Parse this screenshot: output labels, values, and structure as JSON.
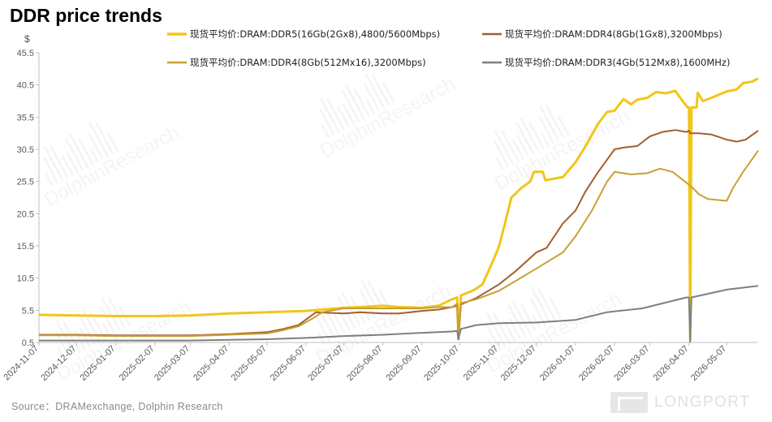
{
  "title": "DDR price trends",
  "source": "Source：DRAMexchange,  Dolphin  Research",
  "brand": "LONGPORT",
  "watermark": "DolphinResearch",
  "chart_data": {
    "type": "line",
    "ylabel": "$",
    "ylim": [
      0.5,
      45.5
    ],
    "yticks": [
      0.5,
      5.5,
      10.5,
      15.5,
      20.5,
      25.5,
      30.5,
      35.5,
      40.5,
      45.5
    ],
    "xlabels": [
      "2024-11-07",
      "2024-12-07",
      "2025-01-07",
      "2025-02-07",
      "2025-03-07",
      "2025-04-07",
      "2025-05-07",
      "2025-06-07",
      "2025-07-07",
      "2025-08-07",
      "2025-09-07",
      "2025-10-07",
      "2025-11-07",
      "2025-12-07",
      "2026-01-07",
      "2026-02-07",
      "2026-03-07",
      "2026-04-07",
      "2026-05-07"
    ],
    "legend_position": "top",
    "series": [
      {
        "name": "现货平均价:DRAM:DDR5(16Gb(2Gx8),4800/5600Mbps)",
        "color": "#f2c519",
        "width": 3,
        "points": [
          [
            "2024-11-07",
            4.8
          ],
          [
            "2024-12-07",
            4.7
          ],
          [
            "2025-01-07",
            4.6
          ],
          [
            "2025-02-07",
            4.6
          ],
          [
            "2025-03-07",
            4.7
          ],
          [
            "2025-04-07",
            5.0
          ],
          [
            "2025-05-07",
            5.2
          ],
          [
            "2025-06-07",
            5.4
          ],
          [
            "2025-06-20",
            5.6
          ],
          [
            "2025-07-07",
            5.9
          ],
          [
            "2025-07-20",
            6.0
          ],
          [
            "2025-08-07",
            6.2
          ],
          [
            "2025-08-20",
            6.0
          ],
          [
            "2025-09-07",
            5.9
          ],
          [
            "2025-09-20",
            6.2
          ],
          [
            "2025-10-01",
            7.2
          ],
          [
            "2025-10-05",
            7.5
          ],
          [
            "2025-10-06",
            1.0
          ],
          [
            "2025-10-08",
            7.8
          ],
          [
            "2025-10-18",
            8.6
          ],
          [
            "2025-10-25",
            9.5
          ],
          [
            "2025-11-01",
            12.5
          ],
          [
            "2025-11-07",
            15.3
          ],
          [
            "2025-11-12",
            19.0
          ],
          [
            "2025-11-17",
            23.0
          ],
          [
            "2025-11-25",
            24.5
          ],
          [
            "2025-12-02",
            25.5
          ],
          [
            "2025-12-05",
            27.0
          ],
          [
            "2025-12-12",
            27.0
          ],
          [
            "2025-12-14",
            25.7
          ],
          [
            "2025-12-28",
            26.2
          ],
          [
            "2026-01-07",
            28.5
          ],
          [
            "2026-01-15",
            31.0
          ],
          [
            "2026-01-25",
            34.5
          ],
          [
            "2026-02-01",
            36.3
          ],
          [
            "2026-02-07",
            36.5
          ],
          [
            "2026-02-14",
            38.3
          ],
          [
            "2026-02-20",
            37.5
          ],
          [
            "2026-02-25",
            38.2
          ],
          [
            "2026-03-05",
            38.5
          ],
          [
            "2026-03-12",
            39.4
          ],
          [
            "2026-03-20",
            39.2
          ],
          [
            "2026-03-27",
            39.6
          ],
          [
            "2026-04-02",
            38.0
          ],
          [
            "2026-04-06",
            37.0
          ],
          [
            "2026-04-07",
            37.0
          ],
          [
            "2026-04-08",
            1.0
          ],
          [
            "2026-04-09",
            37.0
          ],
          [
            "2026-04-13",
            37.0
          ],
          [
            "2026-04-14",
            39.3
          ],
          [
            "2026-04-18",
            38.0
          ],
          [
            "2026-04-25",
            38.5
          ],
          [
            "2026-05-07",
            39.5
          ],
          [
            "2026-05-15",
            39.8
          ],
          [
            "2026-05-20",
            40.8
          ],
          [
            "2026-05-27",
            41.0
          ],
          [
            "2026-06-01",
            41.5
          ]
        ]
      },
      {
        "name": "现货平均价:DRAM:DDR4(8Gb(1Gx8),3200Mbps)",
        "color": "#a45f2b",
        "width": 2,
        "points": [
          [
            "2024-11-07",
            1.7
          ],
          [
            "2024-12-07",
            1.7
          ],
          [
            "2025-01-07",
            1.6
          ],
          [
            "2025-02-07",
            1.6
          ],
          [
            "2025-03-07",
            1.6
          ],
          [
            "2025-04-07",
            1.8
          ],
          [
            "2025-05-07",
            2.1
          ],
          [
            "2025-05-20",
            2.6
          ],
          [
            "2025-06-01",
            3.2
          ],
          [
            "2025-06-10",
            4.5
          ],
          [
            "2025-06-15",
            5.2
          ],
          [
            "2025-07-07",
            5.0
          ],
          [
            "2025-07-20",
            5.2
          ],
          [
            "2025-08-07",
            5.0
          ],
          [
            "2025-08-20",
            5.0
          ],
          [
            "2025-09-07",
            5.4
          ],
          [
            "2025-09-20",
            5.6
          ],
          [
            "2025-10-01",
            6.0
          ],
          [
            "2025-10-05",
            6.2
          ],
          [
            "2025-10-06",
            1.0
          ],
          [
            "2025-10-08",
            6.4
          ],
          [
            "2025-10-20",
            7.4
          ],
          [
            "2025-11-07",
            9.5
          ],
          [
            "2025-11-20",
            11.5
          ],
          [
            "2025-12-07",
            14.5
          ],
          [
            "2025-12-15",
            15.2
          ],
          [
            "2025-12-28",
            19.0
          ],
          [
            "2026-01-07",
            21.0
          ],
          [
            "2026-01-15",
            24.0
          ],
          [
            "2026-01-25",
            27.0
          ],
          [
            "2026-02-07",
            30.5
          ],
          [
            "2026-02-15",
            30.8
          ],
          [
            "2026-02-25",
            31.0
          ],
          [
            "2026-03-07",
            32.5
          ],
          [
            "2026-03-17",
            33.2
          ],
          [
            "2026-03-27",
            33.5
          ],
          [
            "2026-04-05",
            33.2
          ],
          [
            "2026-04-07",
            33.4
          ],
          [
            "2026-04-08",
            33.0
          ],
          [
            "2026-04-15",
            33.0
          ],
          [
            "2026-04-25",
            32.8
          ],
          [
            "2026-05-07",
            32.0
          ],
          [
            "2026-05-15",
            31.7
          ],
          [
            "2026-05-22",
            32.0
          ],
          [
            "2026-06-01",
            33.4
          ]
        ]
      },
      {
        "name": "现货平均价:DRAM:DDR4(8Gb(512Mx16),3200Mbps)",
        "color": "#c8a033",
        "width": 2,
        "points": [
          [
            "2024-11-07",
            1.6
          ],
          [
            "2024-12-07",
            1.6
          ],
          [
            "2025-01-07",
            1.5
          ],
          [
            "2025-02-07",
            1.5
          ],
          [
            "2025-03-07",
            1.5
          ],
          [
            "2025-04-07",
            1.7
          ],
          [
            "2025-05-07",
            1.9
          ],
          [
            "2025-05-20",
            2.4
          ],
          [
            "2025-06-01",
            3.0
          ],
          [
            "2025-06-12",
            4.2
          ],
          [
            "2025-06-20",
            5.2
          ],
          [
            "2025-07-07",
            5.8
          ],
          [
            "2025-08-07",
            5.8
          ],
          [
            "2025-09-07",
            5.8
          ],
          [
            "2025-09-20",
            6.0
          ],
          [
            "2025-10-01",
            6.0
          ],
          [
            "2025-10-05",
            6.5
          ],
          [
            "2025-10-06",
            1.0
          ],
          [
            "2025-10-08",
            6.6
          ],
          [
            "2025-10-20",
            7.2
          ],
          [
            "2025-11-07",
            8.5
          ],
          [
            "2025-11-20",
            10.0
          ],
          [
            "2025-12-07",
            12.0
          ],
          [
            "2025-12-28",
            14.5
          ],
          [
            "2026-01-07",
            17.0
          ],
          [
            "2026-01-20",
            21.0
          ],
          [
            "2026-02-01",
            25.5
          ],
          [
            "2026-02-07",
            27.0
          ],
          [
            "2026-02-20",
            26.6
          ],
          [
            "2026-03-05",
            26.8
          ],
          [
            "2026-03-15",
            27.5
          ],
          [
            "2026-03-25",
            27.0
          ],
          [
            "2026-04-07",
            25.0
          ],
          [
            "2026-04-10",
            24.5
          ],
          [
            "2026-04-15",
            23.5
          ],
          [
            "2026-04-22",
            22.8
          ],
          [
            "2026-05-07",
            22.5
          ],
          [
            "2026-05-12",
            24.5
          ],
          [
            "2026-05-20",
            27.0
          ],
          [
            "2026-06-01",
            30.3
          ]
        ]
      },
      {
        "name": "现货平均价:DRAM:DDR3(4Gb(512Mx8),1600MHz)",
        "color": "#7f7f7f",
        "width": 2,
        "points": [
          [
            "2024-11-07",
            0.8
          ],
          [
            "2024-12-07",
            0.8
          ],
          [
            "2025-01-07",
            0.8
          ],
          [
            "2025-02-07",
            0.8
          ],
          [
            "2025-03-07",
            0.8
          ],
          [
            "2025-04-07",
            0.9
          ],
          [
            "2025-05-07",
            1.0
          ],
          [
            "2025-06-07",
            1.2
          ],
          [
            "2025-07-07",
            1.5
          ],
          [
            "2025-08-07",
            1.7
          ],
          [
            "2025-09-07",
            2.0
          ],
          [
            "2025-10-01",
            2.2
          ],
          [
            "2025-10-05",
            2.3
          ],
          [
            "2025-10-06",
            1.0
          ],
          [
            "2025-10-08",
            2.6
          ],
          [
            "2025-10-20",
            3.2
          ],
          [
            "2025-11-07",
            3.5
          ],
          [
            "2025-12-07",
            3.6
          ],
          [
            "2026-01-07",
            4.0
          ],
          [
            "2026-02-01",
            5.2
          ],
          [
            "2026-03-01",
            5.8
          ],
          [
            "2026-04-05",
            7.5
          ],
          [
            "2026-04-07",
            7.5
          ],
          [
            "2026-04-08",
            0.6
          ],
          [
            "2026-04-09",
            7.5
          ],
          [
            "2026-05-07",
            8.7
          ],
          [
            "2026-06-01",
            9.3
          ]
        ]
      }
    ]
  }
}
